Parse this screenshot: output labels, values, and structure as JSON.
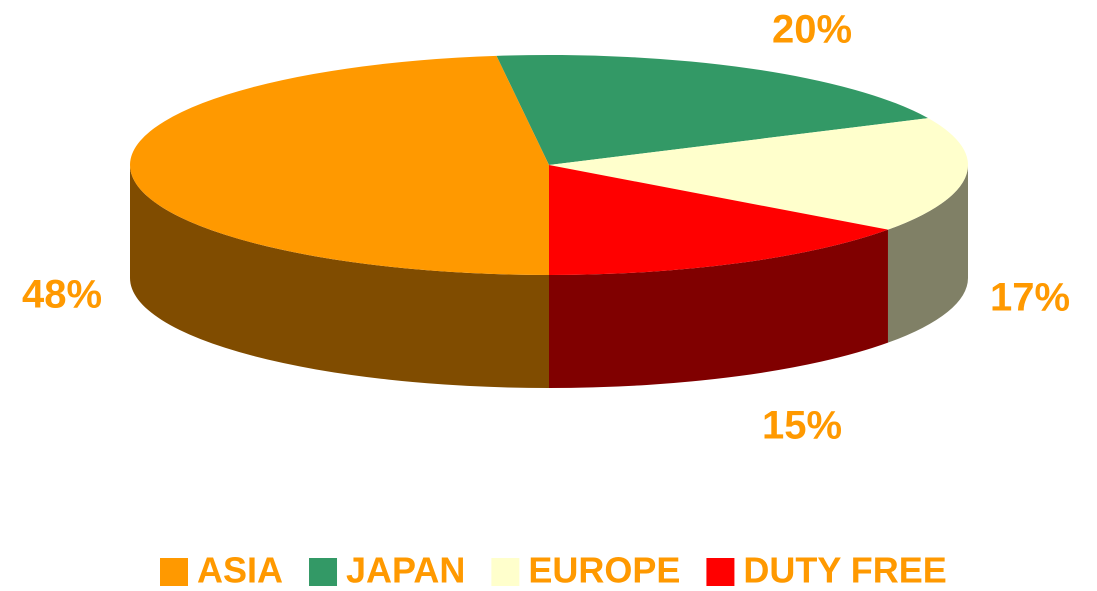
{
  "chart_data": {
    "type": "pie3d",
    "categories": [
      "ASIA",
      "JAPAN",
      "EUROPE",
      "DUTY FREE"
    ],
    "values": [
      48,
      20,
      17,
      15
    ],
    "value_labels": [
      "48%",
      "20%",
      "17%",
      "15%"
    ],
    "colors": [
      "#FF9900",
      "#339966",
      "#FFFFCC",
      "#FF0000"
    ],
    "side_colors": [
      "#804C00",
      "#1A4C33",
      "#808066",
      "#800000"
    ],
    "label_color": "#FF9900",
    "legend": "bottom"
  }
}
